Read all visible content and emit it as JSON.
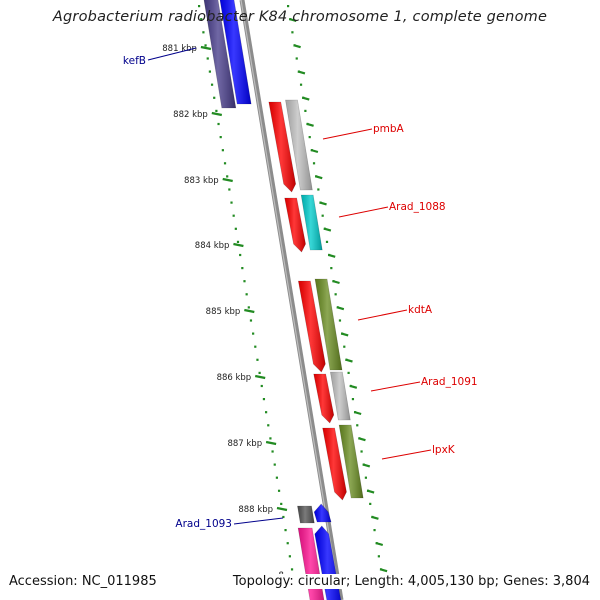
{
  "title": "Agrobacterium radiobacter K84 chromosome 1, complete genome",
  "footer": {
    "accession": "Accession: NC_011985",
    "topology": "Topology: circular; Length: 4,005,130 bp; Genes: 3,804"
  },
  "kbp_labels": [
    "881 kbp",
    "882 kbp",
    "883 kbp",
    "884 kbp",
    "885 kbp",
    "886 kbp",
    "887 kbp",
    "888 kbp"
  ],
  "genes": [
    {
      "name": "kefB",
      "label_color": "#00008b",
      "label_side": "left"
    },
    {
      "name": "pmbA",
      "label_color": "#dd0000",
      "label_side": "right"
    },
    {
      "name": "Arad_1088",
      "label_color": "#dd0000",
      "label_side": "right"
    },
    {
      "name": "kdtA",
      "label_color": "#dd0000",
      "label_side": "right"
    },
    {
      "name": "Arad_1091",
      "label_color": "#dd0000",
      "label_side": "right"
    },
    {
      "name": "lpxK",
      "label_color": "#dd0000",
      "label_side": "right"
    },
    {
      "name": "Arad_1093",
      "label_color": "#00008b",
      "label_side": "left"
    }
  ],
  "colors": {
    "backbone": "#8c8c8c",
    "tick_green": "#228b22",
    "strand_plus": "#ff0000",
    "strand_minus": "#0000ff",
    "cog_grey": "#c0c0c0",
    "cog_cyan": "#00cccc",
    "cog_olive": "#6b8e23",
    "cog_navy": "#483d8b",
    "cog_dark": "#555555",
    "cog_magenta": "#ff1493"
  }
}
